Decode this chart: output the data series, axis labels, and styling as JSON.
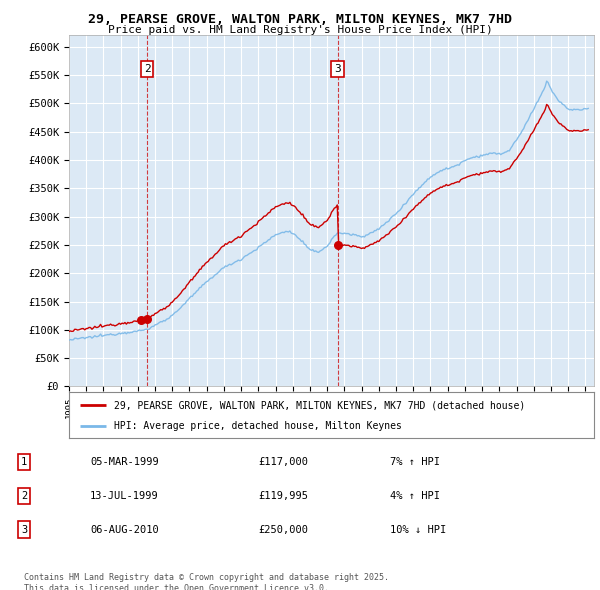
{
  "title": "29, PEARSE GROVE, WALTON PARK, MILTON KEYNES, MK7 7HD",
  "subtitle": "Price paid vs. HM Land Registry's House Price Index (HPI)",
  "legend_line1": "29, PEARSE GROVE, WALTON PARK, MILTON KEYNES, MK7 7HD (detached house)",
  "legend_line2": "HPI: Average price, detached house, Milton Keynes",
  "footnote": "Contains HM Land Registry data © Crown copyright and database right 2025.\nThis data is licensed under the Open Government Licence v3.0.",
  "sales": [
    {
      "num": 1,
      "date": "05-MAR-1999",
      "price": 117000,
      "price_str": "£117,000",
      "hpi_pct": "7% ↑ HPI",
      "year": 1999.18
    },
    {
      "num": 2,
      "date": "13-JUL-1999",
      "price": 119995,
      "price_str": "£119,995",
      "hpi_pct": "4% ↑ HPI",
      "year": 1999.54
    },
    {
      "num": 3,
      "date": "06-AUG-2010",
      "price": 250000,
      "price_str": "£250,000",
      "hpi_pct": "10% ↓ HPI",
      "year": 2010.6
    }
  ],
  "ylim": [
    0,
    620000
  ],
  "xlim": [
    1995.0,
    2025.5
  ],
  "yticks": [
    0,
    50000,
    100000,
    150000,
    200000,
    250000,
    300000,
    350000,
    400000,
    450000,
    500000,
    550000,
    600000
  ],
  "ytick_labels": [
    "£0",
    "£50K",
    "£100K",
    "£150K",
    "£200K",
    "£250K",
    "£300K",
    "£350K",
    "£400K",
    "£450K",
    "£500K",
    "£550K",
    "£600K"
  ],
  "hpi_color": "#7ab8e8",
  "price_color": "#cc0000",
  "bg_color": "#dce9f5",
  "grid_color": "#ffffff"
}
